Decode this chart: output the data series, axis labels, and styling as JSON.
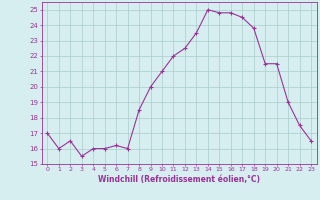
{
  "x": [
    0,
    1,
    2,
    3,
    4,
    5,
    6,
    7,
    8,
    9,
    10,
    11,
    12,
    13,
    14,
    15,
    16,
    17,
    18,
    19,
    20,
    21,
    22,
    23
  ],
  "y": [
    17,
    16,
    16.5,
    15.5,
    16,
    16,
    16.2,
    16,
    18.5,
    20,
    21,
    22,
    22.5,
    23.5,
    25,
    24.8,
    24.8,
    24.5,
    23.8,
    21.5,
    21.5,
    19,
    17.5,
    16.5
  ],
  "line_color": "#993399",
  "marker": "+",
  "bg_color": "#d6eef0",
  "grid_color": "#aacccc",
  "xlabel": "Windchill (Refroidissement éolien,°C)",
  "xlabel_color": "#993399",
  "tick_color": "#993399",
  "spine_color": "#993399",
  "ylabel_ticks": [
    15,
    16,
    17,
    18,
    19,
    20,
    21,
    22,
    23,
    24,
    25
  ],
  "xlim": [
    -0.5,
    23.5
  ],
  "ylim": [
    15,
    25.5
  ],
  "figsize": [
    3.2,
    2.0
  ],
  "dpi": 100
}
